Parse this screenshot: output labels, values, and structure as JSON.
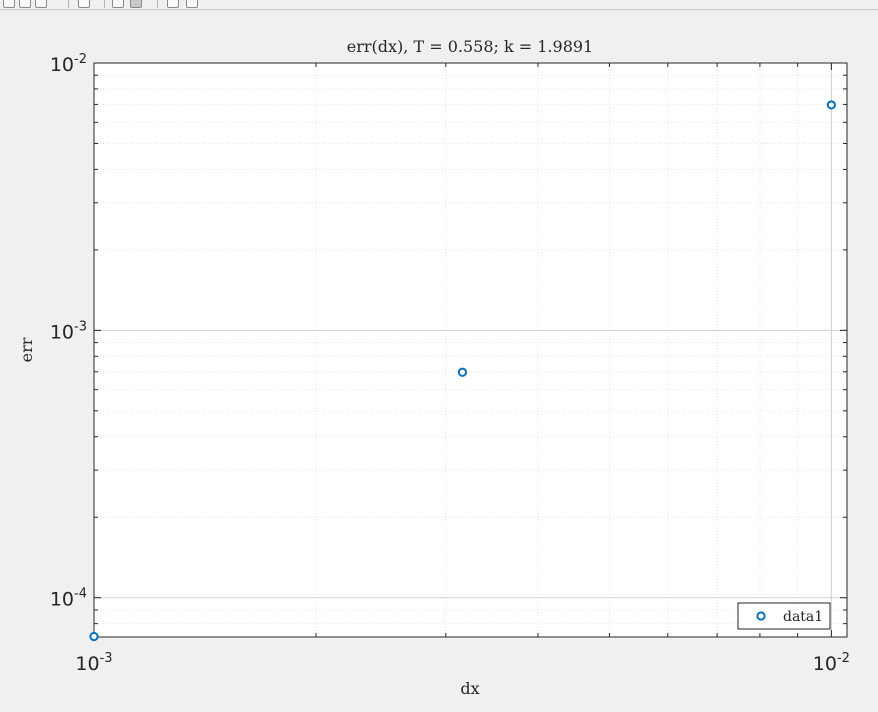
{
  "toolbar": {
    "buttons": [
      "save-icon",
      "print-icon",
      "insert-colorbar-icon",
      "zoom-icon",
      "pan-icon",
      "data-cursor-icon",
      "insert-legend-icon",
      "link-icon"
    ]
  },
  "chart_data": {
    "type": "scatter",
    "title": "err(dx), T = 0.558; k = 1.9891",
    "xlabel": "dx",
    "ylabel": "err",
    "xscale": "log",
    "yscale": "log",
    "xlim": [
      0.001,
      0.0105
    ],
    "ylim": [
      7.13e-05,
      0.01
    ],
    "xticks": [
      {
        "value": 0.001,
        "base": "10",
        "exp": "-3"
      },
      {
        "value": 0.01,
        "base": "10",
        "exp": "-2"
      }
    ],
    "yticks": [
      {
        "value": 0.0001,
        "base": "10",
        "exp": "-4"
      },
      {
        "value": 0.001,
        "base": "10",
        "exp": "-3"
      },
      {
        "value": 0.01,
        "base": "10",
        "exp": "-2"
      }
    ],
    "grid": true,
    "minor_grid": true,
    "series": [
      {
        "name": "data1",
        "color": "#0072bd",
        "marker": "circle",
        "x": [
          0.001,
          0.00316,
          0.01
        ],
        "y": [
          7.16e-05,
          0.000697,
          0.00697
        ]
      }
    ],
    "legend": {
      "position": "bottom-right",
      "entries": [
        "data1"
      ]
    }
  }
}
